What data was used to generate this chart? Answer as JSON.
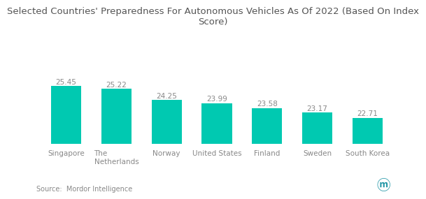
{
  "title": "Selected Countries' Preparedness For Autonomous Vehicles As Of 2022 (Based On Index\nScore)",
  "categories": [
    "Singapore",
    "The\nNetherlands",
    "Norway",
    "United States",
    "Finland",
    "Sweden",
    "South Korea"
  ],
  "values": [
    25.45,
    25.22,
    24.25,
    23.99,
    23.58,
    23.17,
    22.71
  ],
  "bar_color": "#00C9B1",
  "source_text": "Source:  Mordor Intelligence",
  "title_fontsize": 9.5,
  "label_fontsize": 7.5,
  "value_fontsize": 7.5,
  "source_fontsize": 7.0,
  "ylim_min": 20.5,
  "ylim_max": 27.5,
  "background_color": "#ffffff",
  "text_color": "#888888",
  "title_color": "#555555"
}
